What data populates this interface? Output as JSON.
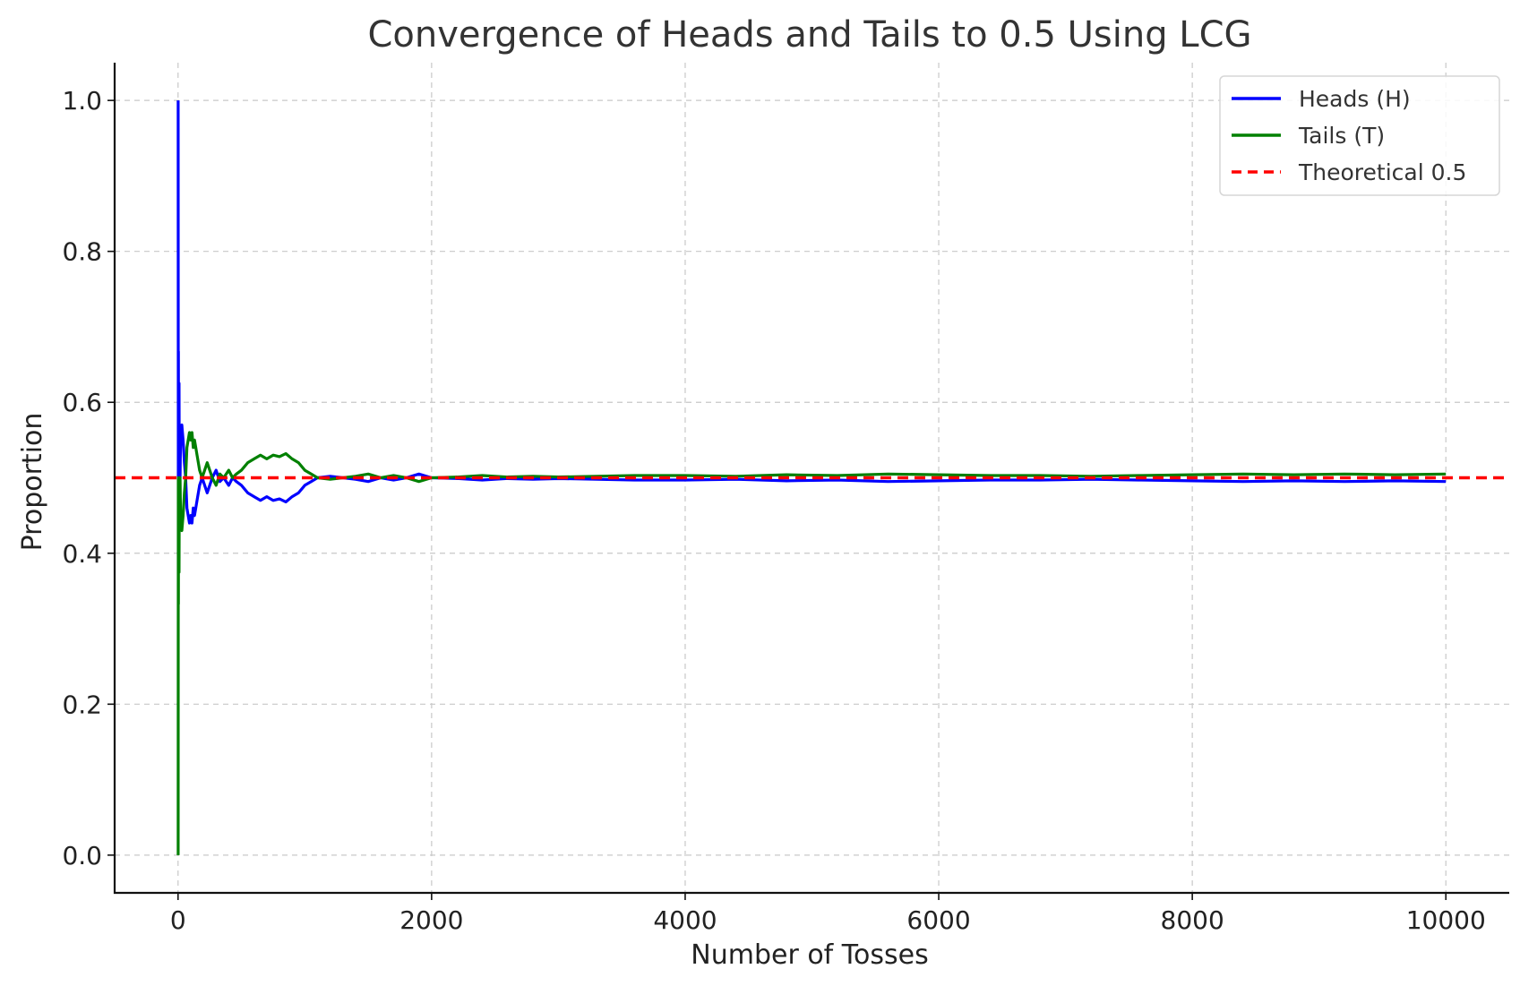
{
  "chart_data": {
    "type": "line",
    "title": "Convergence of Heads and Tails to 0.5 Using LCG",
    "xlabel": "Number of Tosses",
    "ylabel": "Proportion",
    "xlim": [
      -500,
      10500
    ],
    "ylim": [
      -0.05,
      1.05
    ],
    "xticks": [
      0,
      2000,
      4000,
      6000,
      8000,
      10000
    ],
    "xtick_labels": [
      "0",
      "2000",
      "4000",
      "6000",
      "8000",
      "10000"
    ],
    "yticks": [
      0.0,
      0.2,
      0.4,
      0.6,
      0.8,
      1.0
    ],
    "ytick_labels": [
      "0.0",
      "0.2",
      "0.4",
      "0.6",
      "0.8",
      "1.0"
    ],
    "grid": true,
    "legend_position": "top-right",
    "series": [
      {
        "name": "Heads (H)",
        "color": "#0000ff",
        "style": "solid",
        "x": [
          1,
          2,
          3,
          4,
          5,
          6,
          8,
          10,
          13,
          16,
          20,
          25,
          30,
          40,
          50,
          60,
          70,
          80,
          90,
          100,
          110,
          120,
          130,
          140,
          150,
          170,
          190,
          210,
          230,
          250,
          270,
          300,
          330,
          360,
          400,
          430,
          460,
          500,
          550,
          600,
          650,
          700,
          750,
          800,
          850,
          900,
          950,
          1000,
          1050,
          1100,
          1200,
          1300,
          1400,
          1500,
          1600,
          1700,
          1800,
          1900,
          2000,
          2200,
          2400,
          2600,
          2800,
          3000,
          3300,
          3600,
          4000,
          4400,
          4800,
          5200,
          5600,
          6000,
          6400,
          6800,
          7200,
          7600,
          8000,
          8400,
          8800,
          9200,
          9600,
          10000
        ],
        "values": [
          1.0,
          0.5,
          0.667,
          0.5,
          0.6,
          0.5,
          0.625,
          0.5,
          0.538,
          0.5,
          0.55,
          0.56,
          0.57,
          0.55,
          0.52,
          0.5,
          0.46,
          0.45,
          0.44,
          0.45,
          0.44,
          0.46,
          0.45,
          0.46,
          0.47,
          0.49,
          0.5,
          0.49,
          0.48,
          0.49,
          0.5,
          0.51,
          0.495,
          0.5,
          0.49,
          0.5,
          0.495,
          0.49,
          0.48,
          0.475,
          0.47,
          0.475,
          0.47,
          0.472,
          0.468,
          0.475,
          0.48,
          0.49,
          0.495,
          0.5,
          0.502,
          0.5,
          0.498,
          0.495,
          0.5,
          0.497,
          0.5,
          0.505,
          0.5,
          0.499,
          0.497,
          0.499,
          0.498,
          0.499,
          0.498,
          0.497,
          0.497,
          0.498,
          0.496,
          0.497,
          0.495,
          0.496,
          0.497,
          0.497,
          0.498,
          0.497,
          0.496,
          0.495,
          0.496,
          0.495,
          0.496,
          0.495
        ]
      },
      {
        "name": "Tails (T)",
        "color": "#008000",
        "style": "solid",
        "x": [
          1,
          2,
          3,
          4,
          5,
          6,
          8,
          10,
          13,
          16,
          20,
          25,
          30,
          40,
          50,
          60,
          70,
          80,
          90,
          100,
          110,
          120,
          130,
          140,
          150,
          170,
          190,
          210,
          230,
          250,
          270,
          300,
          330,
          360,
          400,
          430,
          460,
          500,
          550,
          600,
          650,
          700,
          750,
          800,
          850,
          900,
          950,
          1000,
          1050,
          1100,
          1200,
          1300,
          1400,
          1500,
          1600,
          1700,
          1800,
          1900,
          2000,
          2200,
          2400,
          2600,
          2800,
          3000,
          3300,
          3600,
          4000,
          4400,
          4800,
          5200,
          5600,
          6000,
          6400,
          6800,
          7200,
          7600,
          8000,
          8400,
          8800,
          9200,
          9600,
          10000
        ],
        "values": [
          0.0,
          0.5,
          0.333,
          0.5,
          0.4,
          0.5,
          0.375,
          0.5,
          0.462,
          0.5,
          0.45,
          0.44,
          0.43,
          0.45,
          0.48,
          0.5,
          0.54,
          0.55,
          0.56,
          0.55,
          0.56,
          0.54,
          0.55,
          0.54,
          0.53,
          0.51,
          0.5,
          0.51,
          0.52,
          0.51,
          0.5,
          0.49,
          0.505,
          0.5,
          0.51,
          0.5,
          0.505,
          0.51,
          0.52,
          0.525,
          0.53,
          0.525,
          0.53,
          0.528,
          0.532,
          0.525,
          0.52,
          0.51,
          0.505,
          0.5,
          0.498,
          0.5,
          0.502,
          0.505,
          0.5,
          0.503,
          0.5,
          0.495,
          0.5,
          0.501,
          0.503,
          0.501,
          0.502,
          0.501,
          0.502,
          0.503,
          0.503,
          0.502,
          0.504,
          0.503,
          0.505,
          0.504,
          0.503,
          0.503,
          0.502,
          0.503,
          0.504,
          0.505,
          0.504,
          0.505,
          0.504,
          0.505
        ]
      },
      {
        "name": "Theoretical 0.5",
        "color": "#ff0000",
        "style": "dashed",
        "x": [
          -500,
          10500
        ],
        "values": [
          0.5,
          0.5
        ]
      }
    ]
  }
}
